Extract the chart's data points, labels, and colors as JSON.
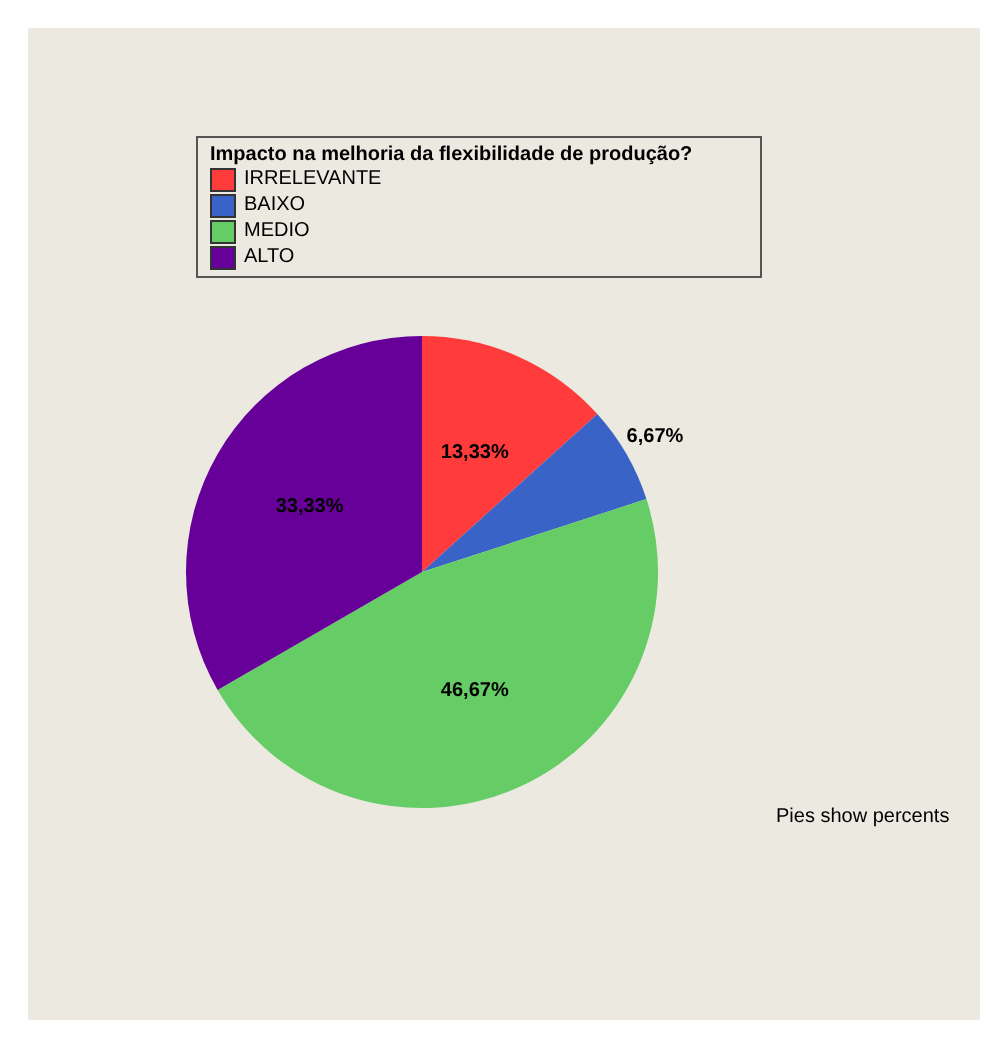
{
  "chart_data": {
    "type": "pie",
    "legend_title": "Impacto na melhoria da flexibilidade de produção?",
    "categories": [
      "IRRELEVANTE",
      "BAIXO",
      "MEDIO",
      "ALTO"
    ],
    "values": [
      13.33,
      6.67,
      46.67,
      33.33
    ],
    "colors": [
      "#ff3b3b",
      "#3a63c8",
      "#66cc66",
      "#660099"
    ],
    "value_labels": [
      "13,33%",
      "6,67%",
      "46,67%",
      "33,33%"
    ],
    "legend": "top",
    "annotations": [
      "Pies show percents"
    ]
  }
}
